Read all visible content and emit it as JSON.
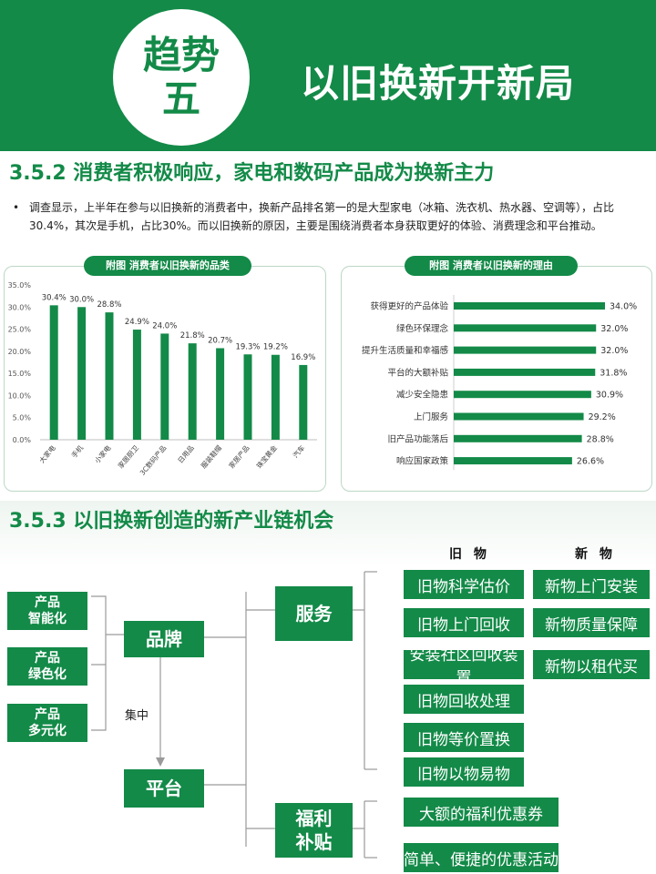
{
  "header": {
    "badge_line1": "趋势",
    "badge_line2": "五",
    "title": "以旧换新开新局"
  },
  "section1": {
    "title": "3.5.2 消费者积极响应，家电和数码产品成为换新主力",
    "bullet": "调查显示，上半年在参与以旧换新的消费者中，换新产品排名第一的是大型家电（冰箱、洗衣机、热水器、空调等），占比30.4%，其次是手机，占比30%。而以旧换新的原因，主要是围绕消费者本身获取更好的体验、消费理念和平台推动。"
  },
  "chart_data": [
    {
      "type": "bar",
      "title": "附图  消费者以旧换新的品类",
      "categories": [
        "大家电",
        "手机",
        "小家电",
        "家居厨卫",
        "3C数码产品",
        "日用品",
        "服装鞋帽",
        "家居产品",
        "珠宝黄金",
        "汽车"
      ],
      "values": [
        30.4,
        30.0,
        28.8,
        24.9,
        24.0,
        21.8,
        20.7,
        19.3,
        19.2,
        16.9
      ],
      "value_labels": [
        "30.4%",
        "30.0%",
        "28.8%",
        "24.9%",
        "24.0%",
        "21.8%",
        "20.7%",
        "19.3%",
        "19.2%",
        "16.9%"
      ],
      "yticks": [
        "0.0%",
        "5.0%",
        "10.0%",
        "15.0%",
        "20.0%",
        "25.0%",
        "30.0%",
        "35.0%"
      ],
      "ylim": [
        0,
        35
      ],
      "grid": false,
      "color": "#138a48"
    },
    {
      "type": "bar",
      "orientation": "horizontal",
      "title": "附图  消费者以旧换新的理由",
      "categories": [
        "获得更好的产品体验",
        "绿色环保理念",
        "提升生活质量和幸福感",
        "平台的大额补贴",
        "减少安全隐患",
        "上门服务",
        "旧产品功能落后",
        "响应国家政策"
      ],
      "values": [
        34.0,
        32.0,
        32.0,
        31.8,
        30.9,
        29.2,
        28.8,
        26.6
      ],
      "value_labels": [
        "34.0%",
        "32.0%",
        "32.0%",
        "31.8%",
        "30.9%",
        "29.2%",
        "28.8%",
        "26.6%"
      ],
      "xlim": [
        0,
        34
      ],
      "grid": false,
      "color": "#138a48"
    }
  ],
  "section2": {
    "title": "3.5.3  以旧换新创造的新产业链机会"
  },
  "diagram": {
    "left_items": [
      {
        "line1": "产品",
        "line2": "智能化"
      },
      {
        "line1": "产品",
        "line2": "绿色化"
      },
      {
        "line1": "产品",
        "line2": "多元化"
      }
    ],
    "brand": "品牌",
    "focus_label": "集中",
    "platform": "平台",
    "service": "服务",
    "welfare_line1": "福利",
    "welfare_line2": "补贴",
    "old_header": "旧 物",
    "new_header": "新 物",
    "old_items": [
      "旧物科学估价",
      "旧物上门回收",
      "安装社区回收装置",
      "旧物回收处理",
      "旧物等价置换",
      "旧物以物易物"
    ],
    "new_items": [
      "新物上门安装",
      "新物质量保障",
      "新物以租代买"
    ],
    "welfare_items": [
      "大额的福利优惠券",
      "简单、便捷的优惠活动"
    ]
  }
}
